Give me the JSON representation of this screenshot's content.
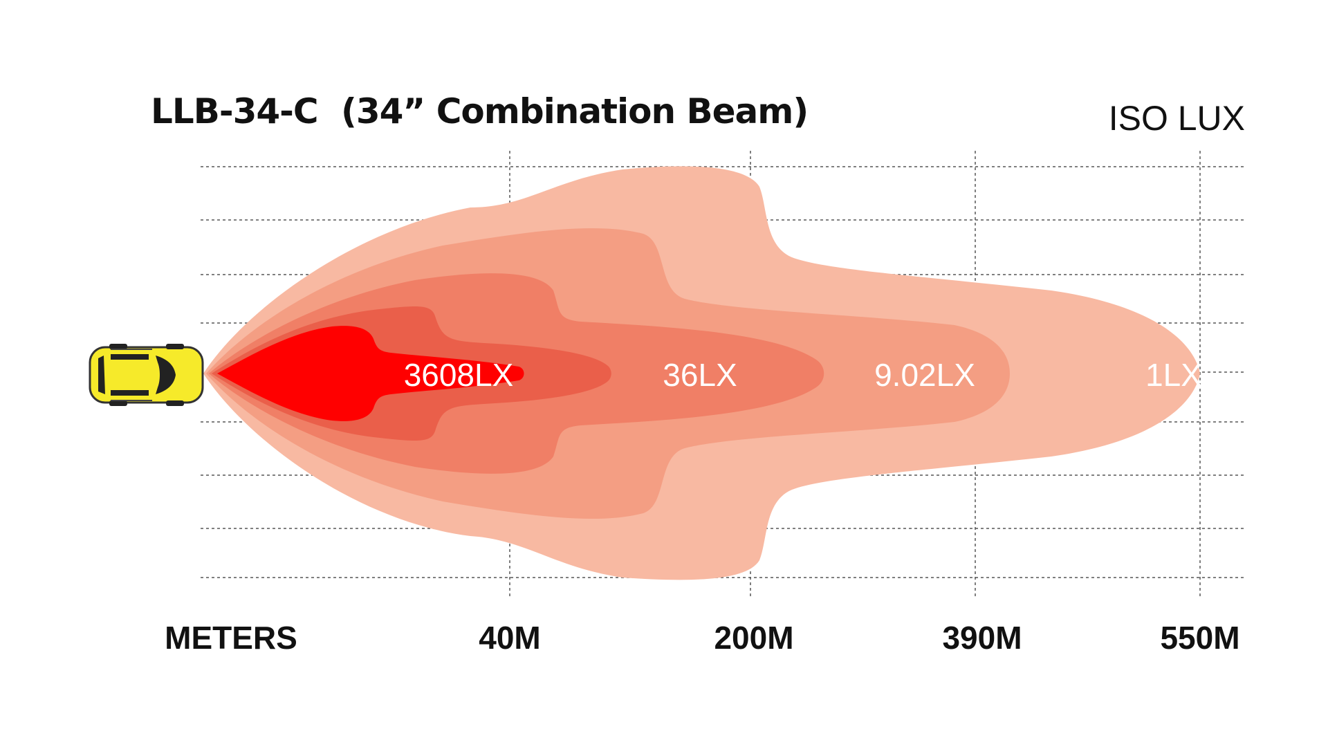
{
  "header": {
    "model": "LLB-34-C",
    "description": "(34” Combination Beam)",
    "unit_label": "ISO LUX"
  },
  "colors": {
    "zone_1lx": "#f8b9a2",
    "zone_9lx": "#f49e83",
    "zone_36lx": "#f07f66",
    "zone_mid": "#ea5f4a",
    "zone_3608lx": "#ff0000",
    "grid": "#555555",
    "car_body": "#f6ea2a"
  },
  "zones": {
    "lux_3608": "3608LX",
    "lux_36": "36LX",
    "lux_9": "9.02LX",
    "lux_1": "1LX"
  },
  "axis": {
    "meters_label": "METERS",
    "ticks": [
      "40M",
      "200M",
      "390M",
      "550M"
    ]
  },
  "icons": {
    "vehicle": "car-top-view-icon"
  }
}
